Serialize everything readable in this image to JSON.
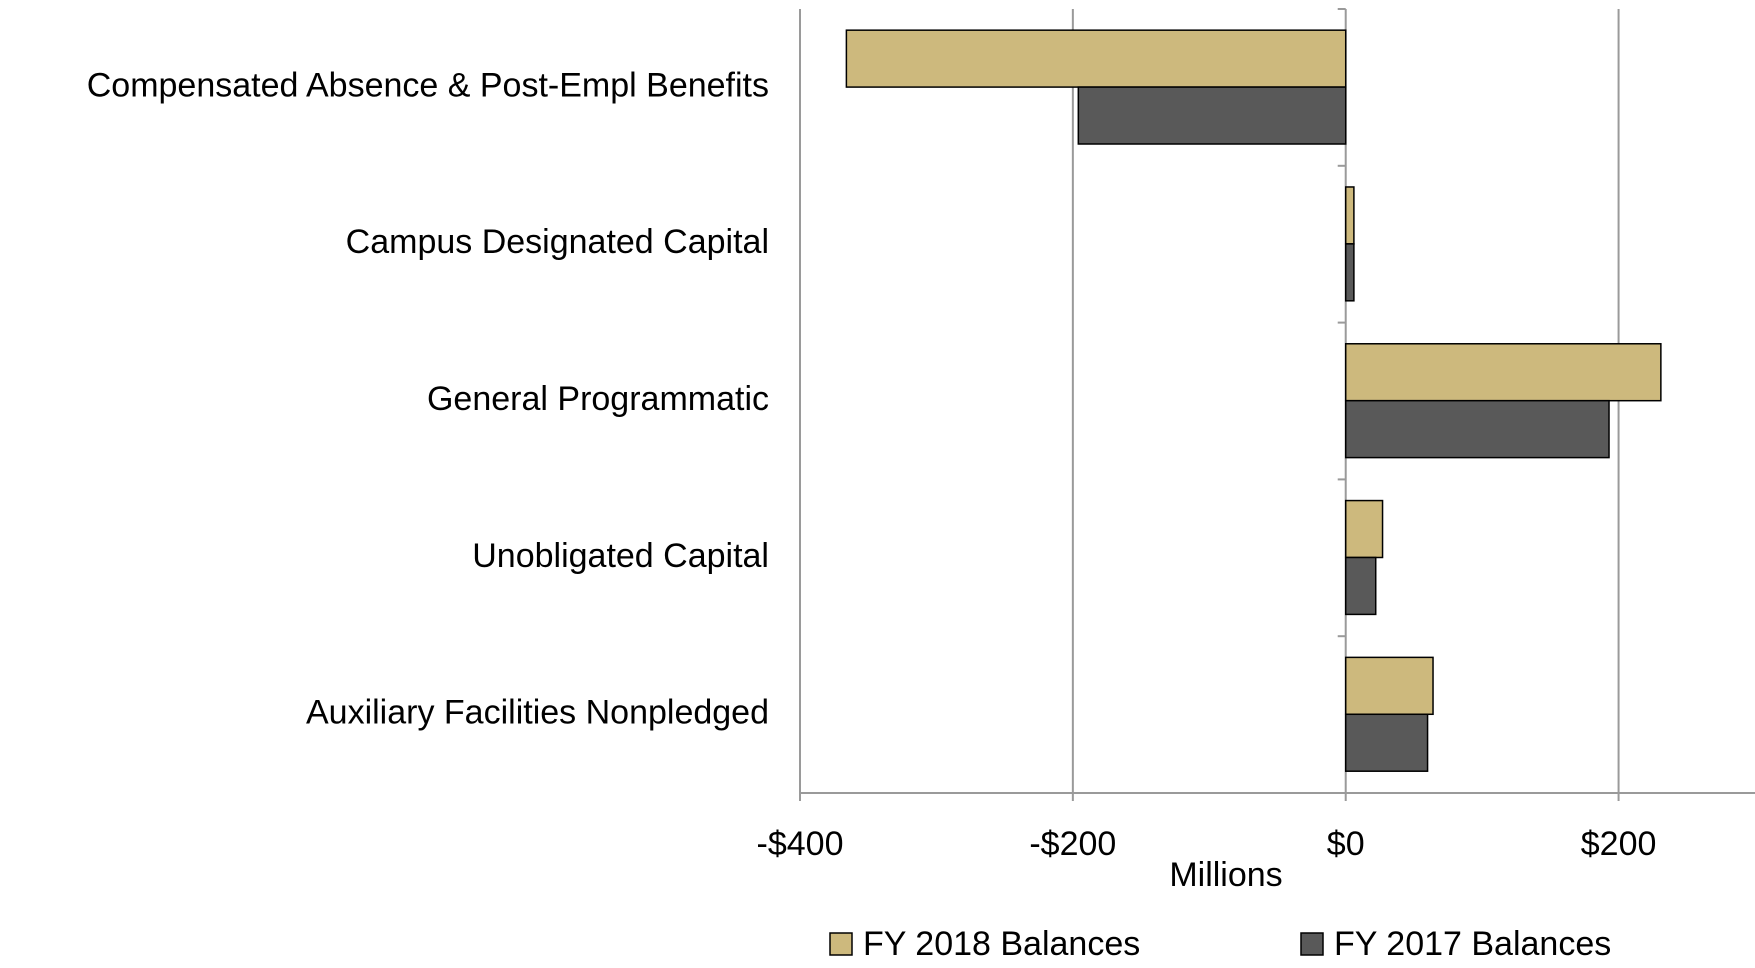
{
  "chart_data": {
    "type": "barh",
    "xlabel": "Millions",
    "categories": [
      "Compensated Absence & Post-Empl Benefits",
      "Campus Designated Capital",
      "General Programmatic",
      "Unobligated Capital",
      "Auxiliary Facilities Nonpledged"
    ],
    "series": [
      {
        "name": "FY 2018 Balances",
        "color": "#cdb97d",
        "values": [
          -366,
          6,
          231,
          27,
          64
        ]
      },
      {
        "name": "FY 2017 Balances",
        "color": "#595959",
        "values": [
          -196,
          6,
          193,
          22,
          60
        ]
      }
    ],
    "xlim": [
      -400,
      300
    ],
    "xticks": [
      {
        "value": -400,
        "label": "-$400"
      },
      {
        "value": -200,
        "label": "-$200"
      },
      {
        "value": 0,
        "label": "$0"
      },
      {
        "value": 200,
        "label": "$200"
      }
    ],
    "grid": true,
    "legend": "bottom"
  }
}
